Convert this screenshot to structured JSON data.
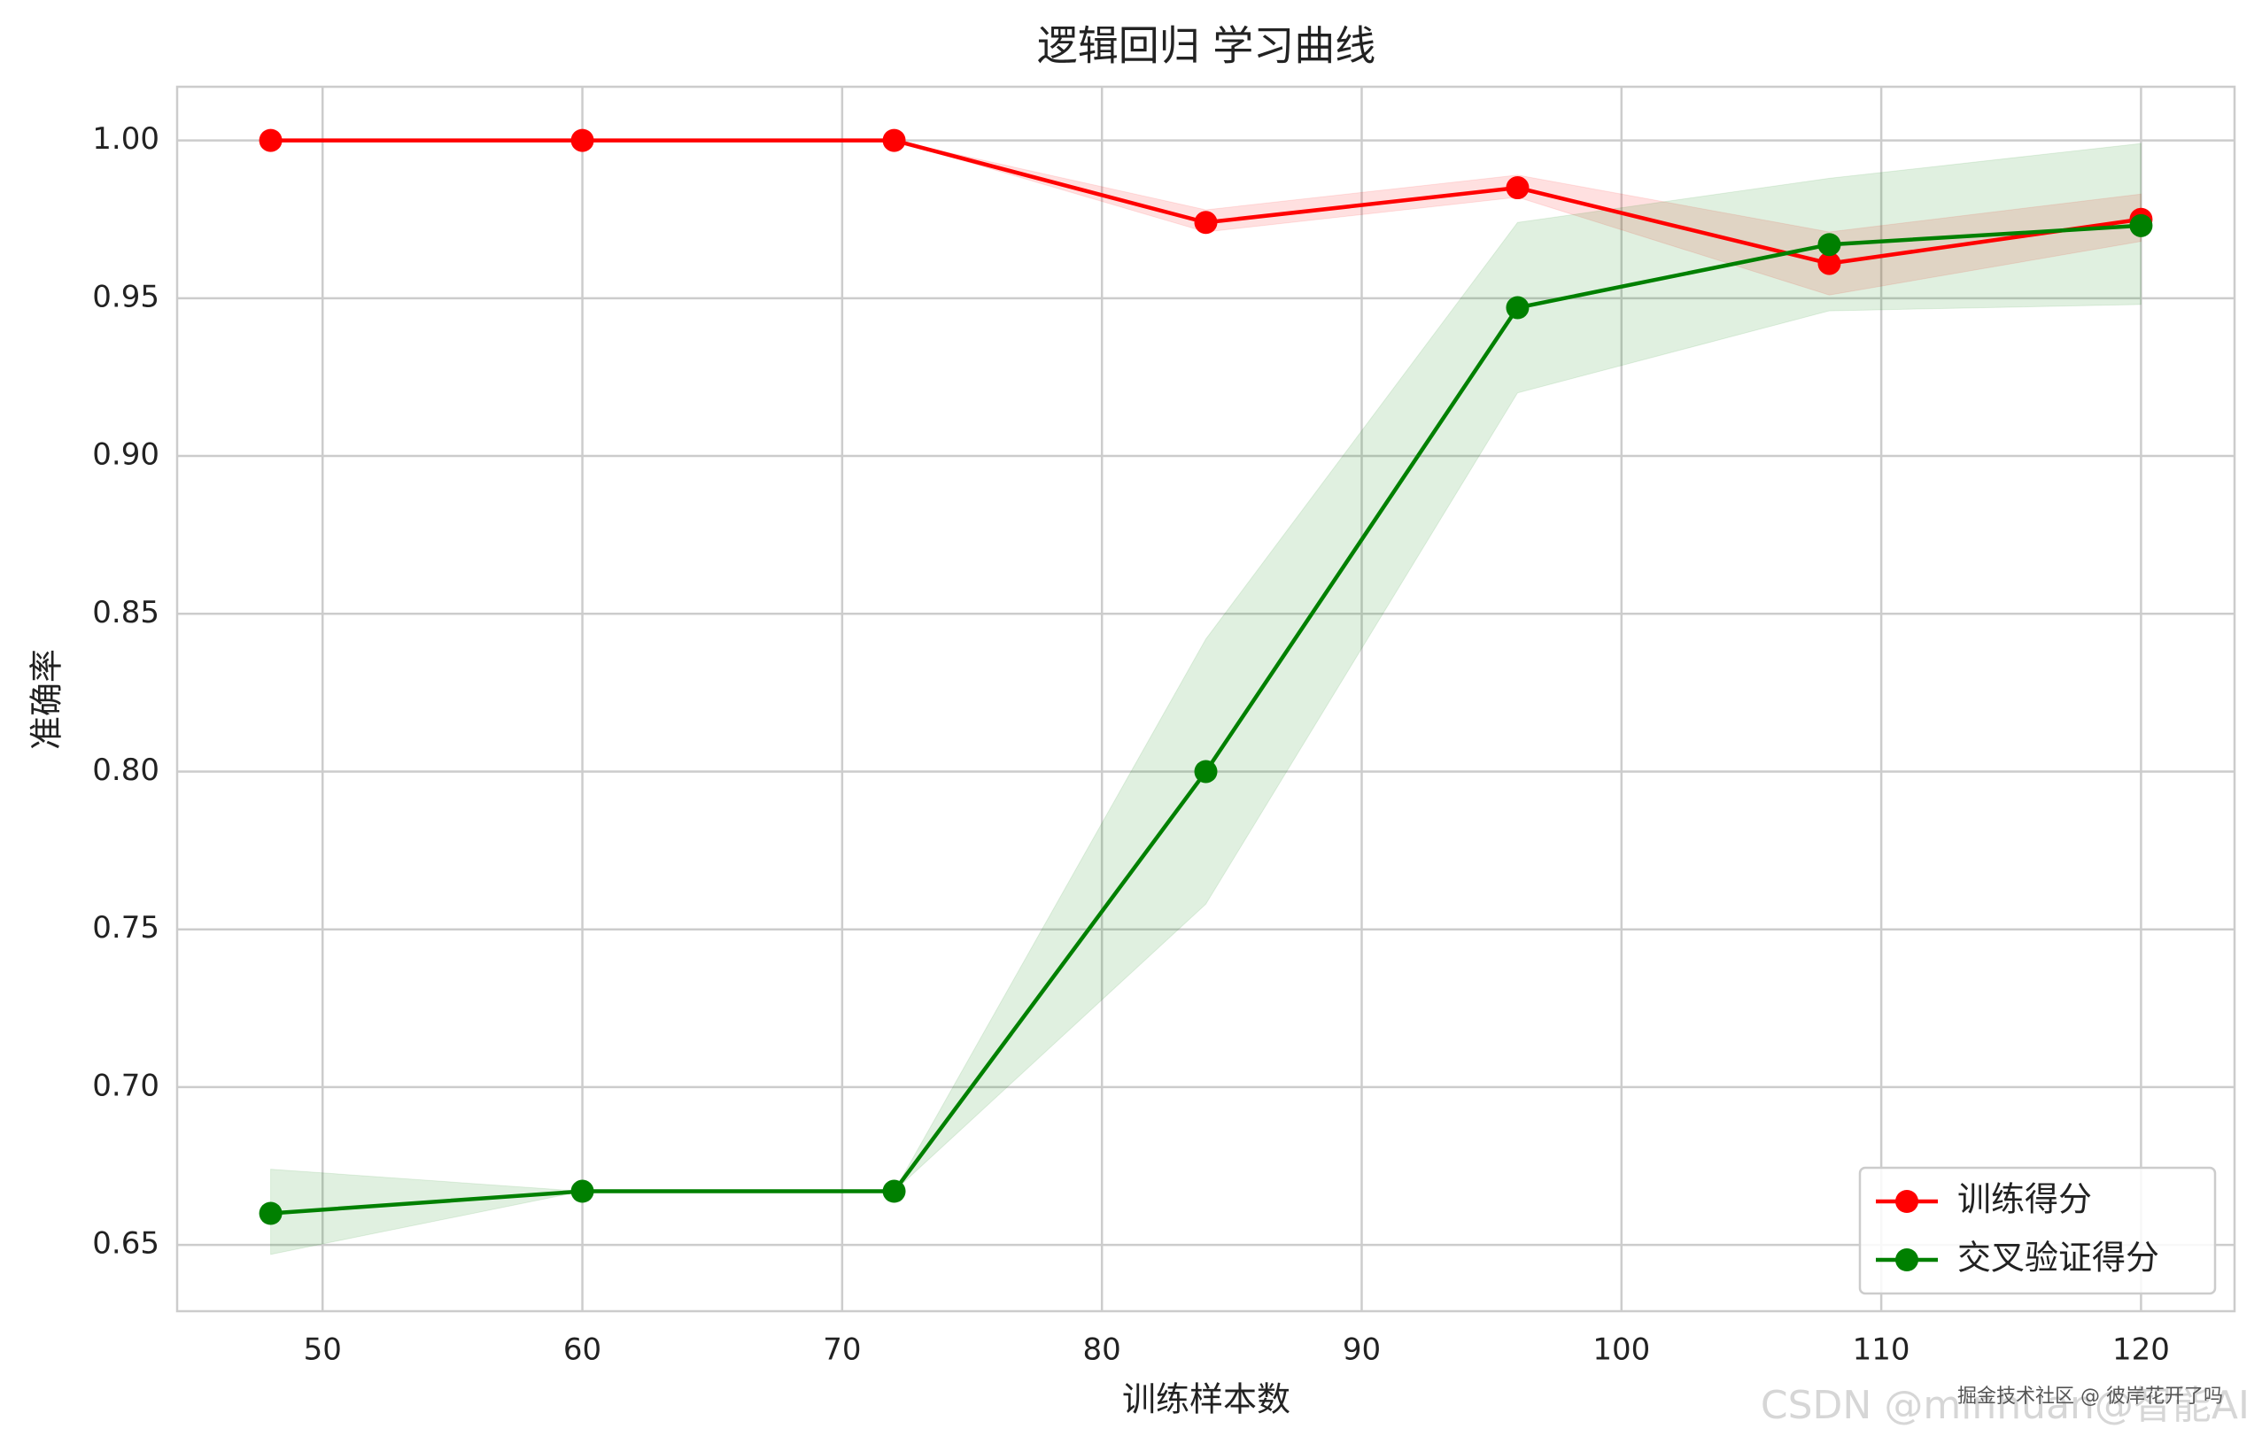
{
  "chart_data": {
    "type": "line",
    "title": "逻辑回归 学习曲线",
    "x_label": "训练样本数",
    "y_label": "准确率",
    "x": [
      48,
      60,
      72,
      84,
      96,
      108,
      120
    ],
    "series": [
      {
        "name": "训练得分",
        "color": "#ff0000",
        "values": [
          1.0,
          1.0,
          1.0,
          0.974,
          0.985,
          0.961,
          0.975
        ],
        "lower": [
          1.0,
          1.0,
          1.0,
          0.971,
          0.982,
          0.951,
          0.968
        ],
        "upper": [
          1.0,
          1.0,
          1.0,
          0.978,
          0.989,
          0.971,
          0.983
        ]
      },
      {
        "name": "交叉验证得分",
        "color": "#008000",
        "values": [
          0.66,
          0.667,
          0.667,
          0.8,
          0.947,
          0.967,
          0.973
        ],
        "lower": [
          0.647,
          0.667,
          0.667,
          0.758,
          0.92,
          0.946,
          0.948
        ],
        "upper": [
          0.674,
          0.667,
          0.667,
          0.842,
          0.974,
          0.988,
          0.999
        ]
      }
    ],
    "xlim": [
      44.4,
      123.6
    ],
    "ylim": [
      0.629,
      1.017
    ],
    "xticks": [
      50,
      60,
      70,
      80,
      90,
      100,
      110,
      120
    ],
    "yticks": [
      {
        "value": 0.65,
        "label": "0.65"
      },
      {
        "value": 0.7,
        "label": "0.70"
      },
      {
        "value": 0.75,
        "label": "0.75"
      },
      {
        "value": 0.8,
        "label": "0.80"
      },
      {
        "value": 0.85,
        "label": "0.85"
      },
      {
        "value": 0.9,
        "label": "0.90"
      },
      {
        "value": 0.95,
        "label": "0.95"
      },
      {
        "value": 1.0,
        "label": "1.00"
      }
    ],
    "grid": true,
    "legend": "lower right",
    "watermarks": [
      "CSDN @minhuan@智能AI",
      "掘金技术社区 @ 彼岸花开了吗"
    ]
  }
}
